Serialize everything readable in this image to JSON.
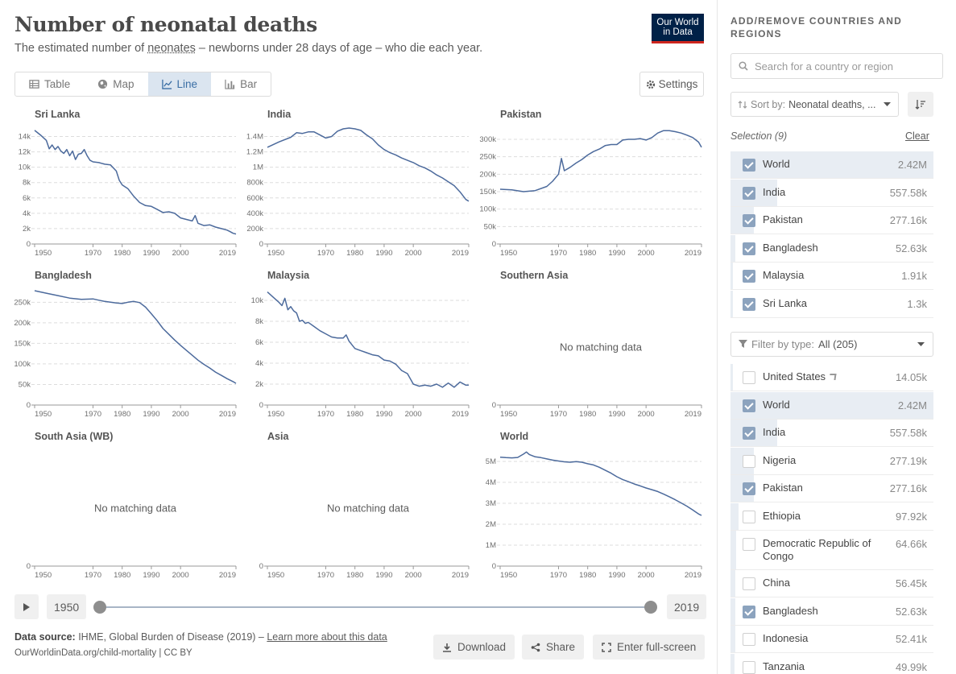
{
  "header": {
    "title": "Number of neonatal deaths",
    "subtitle_pre": "The estimated number of ",
    "subtitle_link": "neonates",
    "subtitle_post": " – newborns under 28 days of age – who die each year.",
    "logo_line1": "Our World",
    "logo_line2": "in Data"
  },
  "tabs": [
    {
      "label": "Table",
      "icon": "table-icon",
      "active": false
    },
    {
      "label": "Map",
      "icon": "globe-icon",
      "active": false
    },
    {
      "label": "Line",
      "icon": "line-chart-icon",
      "active": true
    },
    {
      "label": "Bar",
      "icon": "bar-chart-icon",
      "active": false
    }
  ],
  "settings_label": "Settings",
  "timeline": {
    "start": "1950",
    "end": "2019",
    "start_fraction": 0,
    "end_fraction": 1
  },
  "footer": {
    "source_label": "Data source:",
    "source_text": " IHME, Global Burden of Disease (2019) – ",
    "learn_more": "Learn more about this data",
    "url": "OurWorldinData.org/child-mortality | CC BY",
    "download": "Download",
    "share": "Share",
    "fullscreen": "Enter full-screen"
  },
  "sidebar": {
    "heading": "ADD/REMOVE COUNTRIES AND REGIONS",
    "search_placeholder": "Search for a country or region",
    "sort_label": "Sort by:",
    "sort_value": "Neonatal deaths, ...",
    "selection_label": "Selection (9)",
    "clear_label": "Clear",
    "selected": [
      {
        "name": "World",
        "value": "2.42M",
        "checked": true,
        "share": 1
      },
      {
        "name": "India",
        "value": "557.58k",
        "checked": true,
        "share": 0.23
      },
      {
        "name": "Pakistan",
        "value": "277.16k",
        "checked": true,
        "share": 0.115
      },
      {
        "name": "Bangladesh",
        "value": "52.63k",
        "checked": true,
        "share": 0.022
      },
      {
        "name": "Malaysia",
        "value": "1.91k",
        "checked": true,
        "share": 0.001
      },
      {
        "name": "Sri Lanka",
        "value": "1.3k",
        "checked": true,
        "share": 0.001
      }
    ],
    "filter_label": "Filter by type:",
    "filter_value": "All (205)",
    "all_items": [
      {
        "name": "United States",
        "value": "14.05k",
        "checked": false,
        "share": 0.006,
        "locate": true
      },
      {
        "name": "World",
        "value": "2.42M",
        "checked": true,
        "share": 1
      },
      {
        "name": "India",
        "value": "557.58k",
        "checked": true,
        "share": 0.23
      },
      {
        "name": "Nigeria",
        "value": "277.19k",
        "checked": false,
        "share": 0.115
      },
      {
        "name": "Pakistan",
        "value": "277.16k",
        "checked": true,
        "share": 0.115
      },
      {
        "name": "Ethiopia",
        "value": "97.92k",
        "checked": false,
        "share": 0.04
      },
      {
        "name": "Democratic Republic of Congo",
        "value": "64.66k",
        "checked": false,
        "share": 0.027
      },
      {
        "name": "China",
        "value": "56.45k",
        "checked": false,
        "share": 0.023
      },
      {
        "name": "Bangladesh",
        "value": "52.63k",
        "checked": true,
        "share": 0.022
      },
      {
        "name": "Indonesia",
        "value": "52.41k",
        "checked": false,
        "share": 0.022
      },
      {
        "name": "Tanzania",
        "value": "49.99k",
        "checked": false,
        "share": 0.021
      }
    ]
  },
  "chart_data": [
    {
      "type": "line",
      "title": "Sri Lanka",
      "xlim": [
        1950,
        2019
      ],
      "ylim": [
        0,
        15000
      ],
      "yticks": [
        0,
        2000,
        4000,
        6000,
        8000,
        10000,
        12000,
        14000
      ],
      "ytick_labels": [
        "0",
        "2k",
        "4k",
        "6k",
        "8k",
        "10k",
        "12k",
        "14k"
      ],
      "xticks": [
        1950,
        1970,
        1980,
        1990,
        2000,
        2019
      ],
      "x": [
        1950,
        1952,
        1954,
        1955,
        1956,
        1957,
        1958,
        1959,
        1960,
        1961,
        1962,
        1963,
        1964,
        1965,
        1966,
        1967,
        1968,
        1969,
        1970,
        1972,
        1974,
        1976,
        1978,
        1979,
        1980,
        1982,
        1984,
        1986,
        1988,
        1990,
        1992,
        1994,
        1996,
        1998,
        2000,
        2002,
        2004,
        2005,
        2006,
        2008,
        2010,
        2012,
        2014,
        2016,
        2017,
        2018,
        2019
      ],
      "y": [
        14800,
        14200,
        13500,
        12400,
        12900,
        12300,
        12700,
        12100,
        11800,
        12300,
        11500,
        12100,
        11000,
        11700,
        11800,
        12300,
        11500,
        10900,
        10700,
        10600,
        10400,
        10300,
        9500,
        8300,
        7700,
        7200,
        6200,
        5400,
        5000,
        4900,
        4500,
        4100,
        4200,
        4000,
        3400,
        3200,
        3000,
        3700,
        2700,
        2400,
        2500,
        2200,
        2000,
        1800,
        1600,
        1400,
        1300
      ],
      "no_data": ""
    },
    {
      "type": "line",
      "title": "India",
      "xlim": [
        1950,
        2019
      ],
      "ylim": [
        0,
        1500000
      ],
      "yticks": [
        0,
        200000,
        400000,
        600000,
        800000,
        1000000,
        1200000,
        1400000
      ],
      "ytick_labels": [
        "0",
        "200k",
        "400k",
        "600k",
        "800k",
        "1M",
        "1.2M",
        "1.4M"
      ],
      "xticks": [
        1950,
        1970,
        1980,
        1990,
        2000,
        2019
      ],
      "x": [
        1950,
        1954,
        1958,
        1960,
        1962,
        1964,
        1966,
        1968,
        1970,
        1972,
        1974,
        1976,
        1978,
        1980,
        1982,
        1984,
        1986,
        1988,
        1990,
        1992,
        1994,
        1996,
        1998,
        2000,
        2002,
        2004,
        2006,
        2008,
        2010,
        2012,
        2014,
        2016,
        2018,
        2019
      ],
      "y": [
        1260000,
        1330000,
        1390000,
        1450000,
        1440000,
        1460000,
        1460000,
        1420000,
        1380000,
        1400000,
        1470000,
        1500000,
        1510000,
        1500000,
        1480000,
        1420000,
        1370000,
        1290000,
        1230000,
        1190000,
        1160000,
        1120000,
        1090000,
        1060000,
        1020000,
        990000,
        950000,
        900000,
        860000,
        810000,
        760000,
        680000,
        580000,
        557580
      ],
      "no_data": ""
    },
    {
      "type": "line",
      "title": "Pakistan",
      "xlim": [
        1950,
        2019
      ],
      "ylim": [
        0,
        330000
      ],
      "yticks": [
        0,
        50000,
        100000,
        150000,
        200000,
        250000,
        300000
      ],
      "ytick_labels": [
        "0",
        "50k",
        "100k",
        "150k",
        "200k",
        "250k",
        "300k"
      ],
      "xticks": [
        1950,
        1970,
        1980,
        1990,
        2000,
        2019
      ],
      "x": [
        1950,
        1954,
        1958,
        1962,
        1966,
        1968,
        1970,
        1971,
        1972,
        1974,
        1976,
        1978,
        1980,
        1982,
        1984,
        1986,
        1988,
        1990,
        1992,
        1994,
        1996,
        1998,
        2000,
        2002,
        2004,
        2006,
        2008,
        2010,
        2012,
        2014,
        2016,
        2018,
        2019
      ],
      "y": [
        157000,
        155000,
        150000,
        153000,
        165000,
        180000,
        200000,
        245000,
        210000,
        220000,
        232000,
        242000,
        255000,
        265000,
        272000,
        282000,
        285000,
        285000,
        298000,
        300000,
        300000,
        302000,
        298000,
        305000,
        318000,
        325000,
        325000,
        322000,
        318000,
        312000,
        305000,
        292000,
        277160
      ],
      "no_data": ""
    },
    {
      "type": "line",
      "title": "Bangladesh",
      "xlim": [
        1950,
        2019
      ],
      "ylim": [
        0,
        280000
      ],
      "yticks": [
        0,
        50000,
        100000,
        150000,
        200000,
        250000
      ],
      "ytick_labels": [
        "0",
        "50k",
        "100k",
        "150k",
        "200k",
        "250k"
      ],
      "xticks": [
        1950,
        1970,
        1980,
        1990,
        2000,
        2019
      ],
      "x": [
        1950,
        1954,
        1958,
        1962,
        1966,
        1970,
        1972,
        1974,
        1976,
        1978,
        1980,
        1982,
        1984,
        1986,
        1988,
        1990,
        1992,
        1994,
        1996,
        1998,
        2000,
        2002,
        2004,
        2006,
        2008,
        2010,
        2012,
        2014,
        2016,
        2018,
        2019
      ],
      "y": [
        278000,
        272000,
        266000,
        260000,
        257000,
        258000,
        255000,
        252000,
        250000,
        248000,
        247000,
        250000,
        252000,
        249000,
        238000,
        222000,
        205000,
        186000,
        172000,
        158000,
        145000,
        133000,
        121000,
        109000,
        99000,
        90000,
        80000,
        72000,
        64000,
        57000,
        52630
      ],
      "no_data": ""
    },
    {
      "type": "line",
      "title": "Malaysia",
      "xlim": [
        1950,
        2019
      ],
      "ylim": [
        0,
        11000
      ],
      "yticks": [
        0,
        2000,
        4000,
        6000,
        8000,
        10000
      ],
      "ytick_labels": [
        "0",
        "2k",
        "4k",
        "6k",
        "8k",
        "10k"
      ],
      "xticks": [
        1950,
        1970,
        1980,
        1990,
        2000,
        2019
      ],
      "x": [
        1950,
        1952,
        1954,
        1955,
        1956,
        1957,
        1958,
        1959,
        1960,
        1961,
        1962,
        1963,
        1964,
        1966,
        1968,
        1970,
        1972,
        1974,
        1976,
        1977,
        1978,
        1980,
        1982,
        1984,
        1986,
        1988,
        1990,
        1992,
        1994,
        1996,
        1998,
        2000,
        2002,
        2004,
        2006,
        2008,
        2010,
        2012,
        2014,
        2016,
        2018,
        2019
      ],
      "y": [
        10800,
        10300,
        9800,
        9500,
        10200,
        9100,
        9400,
        9000,
        8800,
        8000,
        8100,
        7800,
        7900,
        7500,
        7100,
        6800,
        6500,
        6400,
        6400,
        6700,
        6100,
        5400,
        5200,
        5000,
        4800,
        4700,
        4300,
        4200,
        3900,
        3300,
        3000,
        2000,
        1800,
        1900,
        1800,
        2000,
        1700,
        2100,
        1700,
        2200,
        1900,
        1910
      ],
      "no_data": ""
    },
    {
      "type": "line",
      "title": "Southern Asia",
      "xlim": [
        1950,
        2019
      ],
      "ylim": [
        0,
        1
      ],
      "yticks": [
        0
      ],
      "ytick_labels": [
        "0"
      ],
      "xticks": [
        1950,
        1970,
        1980,
        1990,
        2000,
        2019
      ],
      "x": [],
      "y": [],
      "no_data": "No matching data"
    },
    {
      "type": "line",
      "title": "South Asia (WB)",
      "xlim": [
        1950,
        2019
      ],
      "ylim": [
        0,
        1
      ],
      "yticks": [
        0
      ],
      "ytick_labels": [
        "0"
      ],
      "xticks": [
        1950,
        1970,
        1980,
        1990,
        2000,
        2019
      ],
      "x": [],
      "y": [],
      "no_data": "No matching data"
    },
    {
      "type": "line",
      "title": "Asia",
      "xlim": [
        1950,
        2019
      ],
      "ylim": [
        0,
        1
      ],
      "yticks": [
        0
      ],
      "ytick_labels": [
        "0"
      ],
      "xticks": [
        1950,
        1970,
        1980,
        1990,
        2000,
        2019
      ],
      "x": [],
      "y": [],
      "no_data": "No matching data"
    },
    {
      "type": "line",
      "title": "World",
      "xlim": [
        1950,
        2019
      ],
      "ylim": [
        0,
        5500000
      ],
      "yticks": [
        0,
        1000000,
        2000000,
        3000000,
        4000000,
        5000000
      ],
      "ytick_labels": [
        "0",
        "1M",
        "2M",
        "3M",
        "4M",
        "5M"
      ],
      "xticks": [
        1950,
        1970,
        1980,
        1990,
        2000,
        2019
      ],
      "x": [
        1950,
        1952,
        1954,
        1956,
        1958,
        1959,
        1960,
        1962,
        1964,
        1966,
        1968,
        1970,
        1972,
        1974,
        1976,
        1978,
        1980,
        1982,
        1984,
        1986,
        1988,
        1990,
        1992,
        1994,
        1996,
        1998,
        2000,
        2002,
        2004,
        2006,
        2008,
        2010,
        2012,
        2014,
        2016,
        2018,
        2019
      ],
      "y": [
        5200000,
        5180000,
        5170000,
        5190000,
        5350000,
        5450000,
        5330000,
        5220000,
        5180000,
        5120000,
        5060000,
        5020000,
        4980000,
        4960000,
        4990000,
        4960000,
        4890000,
        4830000,
        4720000,
        4580000,
        4440000,
        4270000,
        4130000,
        4030000,
        3920000,
        3830000,
        3730000,
        3650000,
        3560000,
        3440000,
        3310000,
        3170000,
        3020000,
        2860000,
        2680000,
        2490000,
        2420000
      ],
      "no_data": ""
    }
  ],
  "colors": {
    "line": "#4c6a9c",
    "grid": "#dddddd",
    "accent": "#3a6ea5"
  }
}
